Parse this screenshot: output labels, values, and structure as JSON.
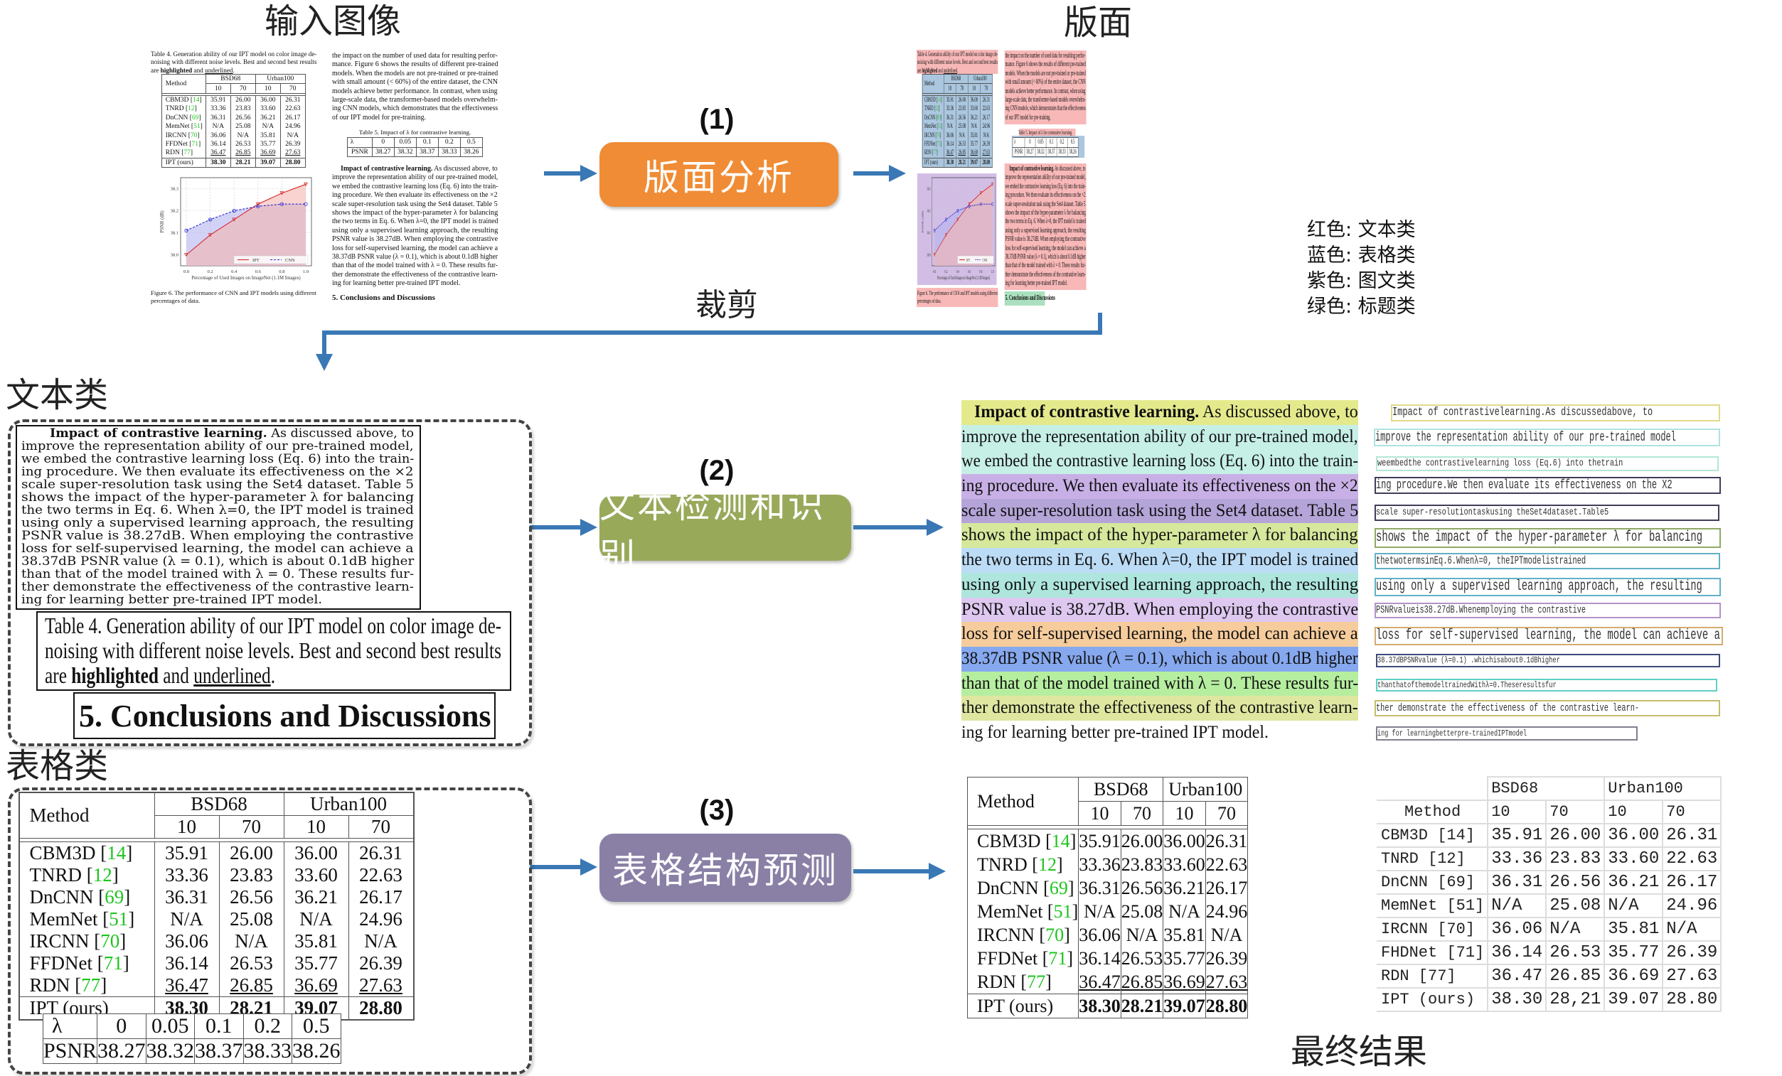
{
  "titles": {
    "input_image": "输入图像",
    "layout": "版面",
    "crop": "裁剪",
    "text_class": "文本类",
    "table_class": "表格类",
    "final_result": "最终结果"
  },
  "steps": [
    {
      "num": "(1)",
      "label": "版面分析",
      "color": "#f08c35"
    },
    {
      "num": "(2)",
      "label": "文本检测和识别",
      "color": "#98a95a"
    },
    {
      "num": "(3)",
      "label": "表格结构预测",
      "color": "#8a80a6"
    }
  ],
  "arrow_color": "#3a78b5",
  "legend": [
    "红色: 文本类",
    "蓝色: 表格类",
    "紫色: 图文类",
    "绿色: 标题类"
  ],
  "layout_colors": {
    "text": "#f5a0a0",
    "table": "#8fb4d4",
    "figure": "#c3a8dc",
    "title": "#8fd6a8"
  },
  "document": {
    "table4_caption": [
      "Table 4. Generation ability of our IPT model on color image de-",
      "noising with different noise levels.  Best and second best results",
      {
        "pre": "are ",
        "bold": "highlighted",
        "mid": " and ",
        "underline": "underlined",
        "post": "."
      }
    ],
    "table4": {
      "method_header": "Method",
      "groups": [
        "BSD68",
        "Urban100"
      ],
      "levels": [
        "10",
        "70",
        "10",
        "70"
      ],
      "rows": [
        {
          "method": "CBM3D",
          "ref": "14",
          "values": [
            "35.91",
            "26.00",
            "36.00",
            "26.31"
          ]
        },
        {
          "method": "TNRD",
          "ref": "12",
          "values": [
            "33.36",
            "23.83",
            "33.60",
            "22.63"
          ]
        },
        {
          "method": "DnCNN",
          "ref": "69",
          "values": [
            "36.31",
            "26.56",
            "36.21",
            "26.17"
          ]
        },
        {
          "method": "MemNet",
          "ref": "51",
          "values": [
            "N/A",
            "25.08",
            "N/A",
            "24.96"
          ]
        },
        {
          "method": "IRCNN",
          "ref": "70",
          "values": [
            "36.06",
            "N/A",
            "35.81",
            "N/A"
          ]
        },
        {
          "method": "FFDNet",
          "ref": "71",
          "values": [
            "36.14",
            "26.53",
            "35.77",
            "26.39"
          ]
        },
        {
          "method": "RDN",
          "ref": "77",
          "values": [
            "36.47",
            "26.85",
            "36.69",
            "27.63"
          ],
          "style": "underline"
        },
        {
          "method": "IPT (ours)",
          "ref": "",
          "values": [
            "38.30",
            "28.21",
            "39.07",
            "28.80"
          ],
          "style": "bold"
        }
      ]
    },
    "figure": {
      "type": "line",
      "x": [
        0.0,
        0.2,
        0.4,
        0.6,
        0.8,
        1.0
      ],
      "x_ticks": [
        "0.0",
        "0.2",
        "0.4",
        "0.6",
        "0.8",
        "1.0"
      ],
      "y_ticks": [
        "38.0",
        "38.1",
        "38.2",
        "38.3"
      ],
      "ylim": [
        37.95,
        38.35
      ],
      "xlabel": "Percentage of Used Images on ImageNet (1.1M Images)",
      "ylabel": "PSNR (dB)",
      "legend_position": "bottom-right",
      "grid": true,
      "series": [
        {
          "name": "IPT",
          "values": [
            38.0,
            38.09,
            38.16,
            38.23,
            38.28,
            38.32
          ],
          "color": "#d62728",
          "fill": "#f4b6b0"
        },
        {
          "name": "CNN",
          "values": [
            38.11,
            38.16,
            38.2,
            38.22,
            38.23,
            38.23
          ],
          "color": "#2525d0",
          "fill": "#b4b4f0"
        }
      ]
    },
    "figure_caption": [
      "Figure 6. The performance of CNN and IPT models using different",
      "percentages of data."
    ],
    "para1": [
      "the impact on the number of used data for resulting perfor-",
      "mance.  Figure 6 shows the results of different pre-trained",
      "models. When the models are not pre-trained or pre-trained",
      "with small amount (< 60%) of the entire dataset, the CNN",
      "models achieve better performance. In contrast, when using",
      "large-scale data, the transformer-based models overwhelm-",
      "ing CNN models, which demonstrates that the effectiveness",
      "of our IPT model for pre-training."
    ],
    "table5_caption": "Table 5. Impact of λ for contrastive learning.",
    "table5": {
      "row_labels": [
        "λ",
        "PSNR"
      ],
      "lambda": [
        "0",
        "0.05",
        "0.1",
        "0.2",
        "0.5"
      ],
      "psnr": [
        "38.27",
        "38.32",
        "38.37",
        "38.33",
        "38.26"
      ]
    },
    "para2_lead": "Impact of contrastive learning.",
    "para2": [
      " As discussed above, to",
      "improve the representation ability of our pre-trained model,",
      "we embed the contrastive learning loss (Eq. 6) into the train-",
      "ing procedure. We then evaluate its effectiveness on the ×2",
      "scale super-resolution task using the Set4 dataset.  Table 5",
      "shows the impact of the hyper-parameter λ for balancing",
      "the two terms in Eq. 6. When λ=0, the IPT model is trained",
      "using only a supervised learning approach, the resulting",
      "PSNR value is 38.27dB. When employing the contrastive",
      "loss for self-supervised learning, the model can achieve a",
      "38.37dB PSNR value (λ = 0.1), which is about 0.1dB higher",
      "than that of the model trained with λ = 0. These results fur-",
      "ther demonstrate the effectiveness of the contrastive learn-",
      "ing for learning better pre-trained IPT model."
    ],
    "heading": "5. Conclusions and Discussions"
  },
  "text_line_highlights": [
    "#e4ea8c",
    "#c6efe6",
    "#c6efe6",
    "#c8b0e6",
    "#b4a4d8",
    "#d6e89c",
    "#bcdcf6",
    "#aee6de",
    "#dec8f0",
    "#f6cc9c",
    "#86a8ee",
    "#b6eea0",
    "#dee6a0",
    ""
  ],
  "ocr_lines": [
    {
      "text": "Impact of contrastivelearning.As discussedabove, to",
      "color": "#e2d98a"
    },
    {
      "text": "improve the representation ability of our pre-trained model",
      "color": "#aee3e0"
    },
    {
      "text": "weembedthe contrastivelearning loss (Eq.6) into thetrain",
      "color": "#b4e6d6"
    },
    {
      "text": "ing procedure.We then evaluate its effectiveness on the X2",
      "color": "#3e3e5a"
    },
    {
      "text": "scale super-resolutiontaskusing theSet4dataset.Table5",
      "color": "#3e3e5a"
    },
    {
      "text": "shows the impact of the hyper-parameter λ for balancing",
      "color": "#8fa862"
    },
    {
      "text": "thetwotermsinEq.6.Whenλ=0, theIPTmodelistrained",
      "color": "#62b0c6"
    },
    {
      "text": "using only a supervised learning approach, the resulting",
      "color": "#62b0c6"
    },
    {
      "text": "PSNRvalueis38.27dB.Whenemploying the contrastive",
      "color": "#b292c8"
    },
    {
      "text": "loss for self-supervised learning,  the model can achieve a",
      "color": "#d4ac6e"
    },
    {
      "text": "38.37dBPSNRvalue (λ=0.1) .whichisabout0.1dBhigher",
      "color": "#3e4c7c"
    },
    {
      "text": "thanthatofthemodeltrainedWithλ=0.Theseresultsfur",
      "color": "#5ed0c6"
    },
    {
      "text": "ther demonstrate the effectiveness of the contrastive learn-",
      "color": "#c6bc6e"
    },
    {
      "text": "ing for learningbetterpre-trainedIPTmodel",
      "color": "#80808e"
    }
  ],
  "ocr_table": {
    "header_groups": [
      "BSD68",
      "Urban100"
    ],
    "method_header": "Method",
    "levels": [
      "10",
      "70",
      "10",
      "70"
    ],
    "rows": [
      [
        "CBM3D [14]",
        "35.91",
        "26.00",
        "36.00",
        "26.31"
      ],
      [
        "TNRD [12]",
        "33.36",
        "23.83",
        "33.60",
        "22.63"
      ],
      [
        "DnCNN [69]",
        "36.31",
        "26.56",
        "36.21",
        "26.17"
      ],
      [
        "MemNet [51]",
        "N/A",
        "25.08",
        "N/A",
        "24.96"
      ],
      [
        "IRCNN [70]",
        "36.06",
        "N/A",
        "35.81",
        "N/A"
      ],
      [
        "FHDNet [71]",
        "36.14",
        "26.53",
        "35.77",
        "26.39"
      ],
      [
        "RDN [77]",
        "36.47",
        "26.85",
        "36.69",
        "27.63"
      ],
      [
        "IPT (ours)",
        "38.30",
        "28,21",
        "39.07",
        "28.80"
      ]
    ]
  }
}
